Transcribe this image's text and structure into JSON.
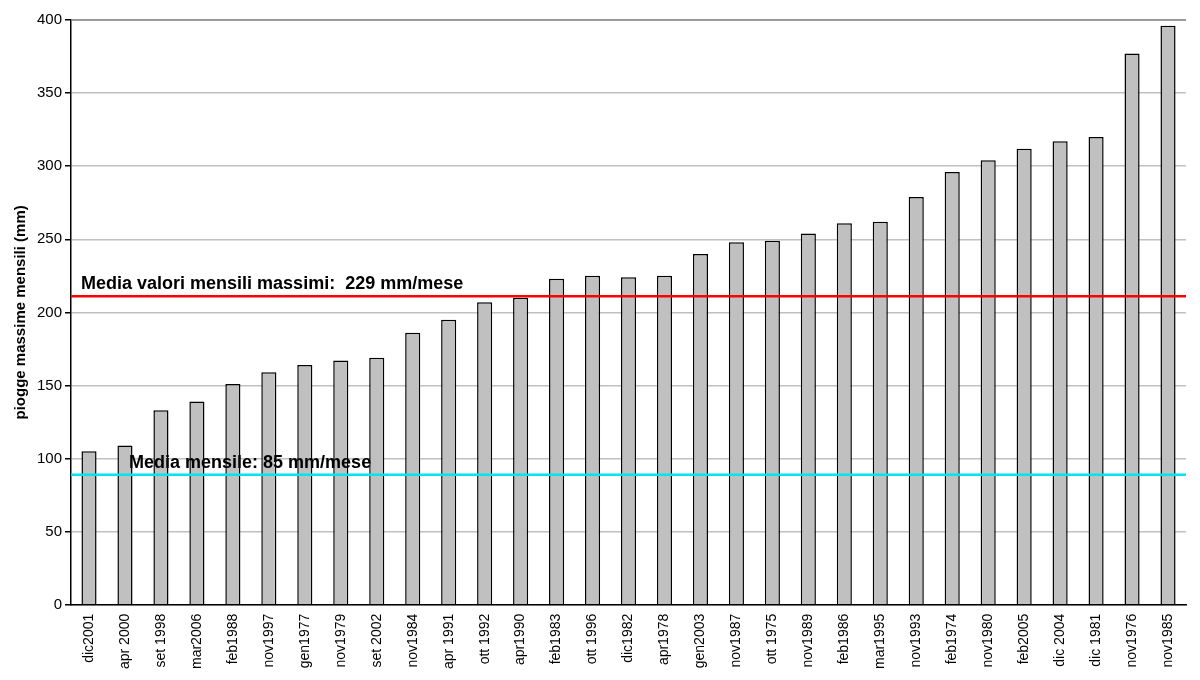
{
  "chart_data": {
    "type": "bar",
    "ylabel": "piogge massime mensili (mm)",
    "categories": [
      "dic2001",
      "apr 2000",
      "set 1998",
      "mar2006",
      "feb1988",
      "nov1997",
      "gen1977",
      "nov1979",
      "set 2002",
      "nov1984",
      "apr 1991",
      "ott 1992",
      "apr1990",
      "feb1983",
      "ott 1996",
      "dic1982",
      "apr1978",
      "gen2003",
      "nov1987",
      "ott 1975",
      "nov1989",
      "feb1986",
      "mar1995",
      "nov1993",
      "feb1974",
      "nov1980",
      "feb2005",
      "dic 2004",
      "dic 1981",
      "nov1976",
      "nov1985"
    ],
    "values": [
      105,
      109,
      133,
      139,
      151,
      159,
      164,
      167,
      169,
      186,
      195,
      207,
      210,
      223,
      225,
      224,
      225,
      240,
      248,
      249,
      254,
      261,
      262,
      279,
      296,
      304,
      312,
      317,
      320,
      377,
      396
    ],
    "color": "#c0c0c0",
    "ylim": [
      0,
      400
    ],
    "yticks": [
      0,
      50,
      100,
      150,
      200,
      250,
      300,
      350,
      400
    ],
    "grid": "y",
    "legend": false,
    "ref_lines": [
      {
        "axis": "y",
        "value": 211,
        "color": "#ff0000"
      },
      {
        "axis": "y",
        "value": 89,
        "color": "#00e5ee"
      }
    ],
    "annotations": [
      "Media valori mensili massimi:  229 mm/mese",
      "Media mensile: 85 mm/mese"
    ]
  }
}
